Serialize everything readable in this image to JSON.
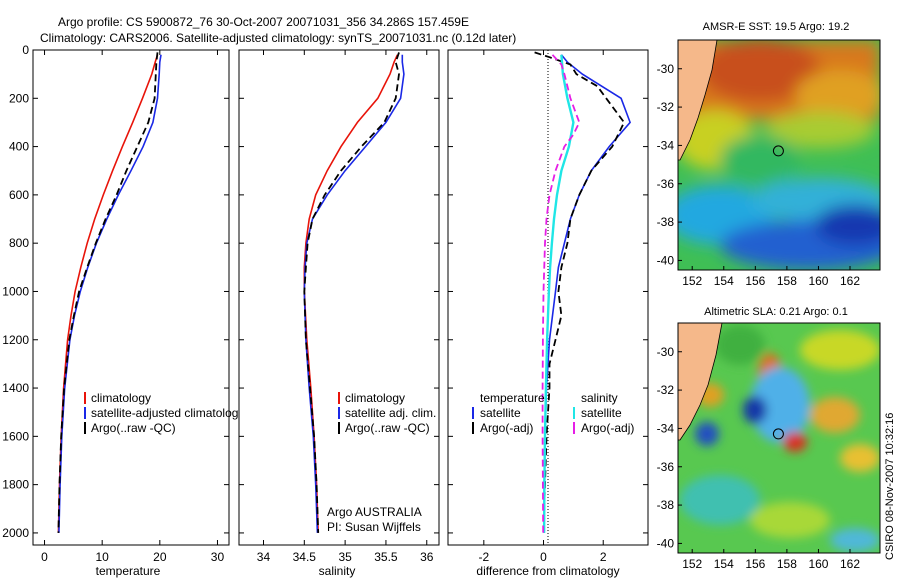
{
  "title_line1": "Argo profile: CS 5900872_76 30-Oct-2007 20071031_356 34.286S 157.459E",
  "title_line2": "Climatology: CARS2006. Satellite-adjusted climatology: synTS_20071031.nc (0.12d later)",
  "footer_credit": "CSIRO 08-Nov-2007 10:32:16",
  "colors": {
    "climatology": "#e8140a",
    "satellite": "#1a28e6",
    "argo": "#000000",
    "sal_satellite": "#1fe6e6",
    "sal_argo": "#e61ee6",
    "land": "#f5b88a"
  },
  "chart_data": [
    {
      "type": "line",
      "name": "temperature-profile",
      "xlabel": "temperature",
      "ylabel": "",
      "xlim": [
        -2,
        32
      ],
      "ylim": [
        2050,
        0
      ],
      "xticks": [
        "0",
        "10",
        "20",
        "30"
      ],
      "xtick_values": [
        0,
        10,
        20,
        30
      ],
      "yticks": [
        "0",
        "200",
        "400",
        "600",
        "800",
        "1000",
        "1200",
        "1400",
        "1600",
        "1800",
        "2000"
      ],
      "ytick_values": [
        0,
        200,
        400,
        600,
        800,
        1000,
        1200,
        1400,
        1600,
        1800,
        2000
      ],
      "legend": [
        "climatology",
        "satellite-adjusted climatology",
        "Argo(..raw -QC)"
      ],
      "series": [
        {
          "name": "climatology",
          "style": "solid",
          "color": "#e8140a",
          "depth": [
            20,
            50,
            100,
            200,
            300,
            400,
            500,
            600,
            700,
            800,
            900,
            1000,
            1100,
            1200,
            1400,
            1600,
            1800,
            2000
          ],
          "values": [
            19.6,
            19.2,
            18.6,
            17.0,
            15.3,
            13.5,
            11.8,
            10.2,
            8.7,
            7.4,
            6.3,
            5.3,
            4.6,
            4.0,
            3.3,
            2.9,
            2.6,
            2.4
          ]
        },
        {
          "name": "satellite-adjusted climatology",
          "style": "solid",
          "color": "#1a28e6",
          "depth": [
            20,
            50,
            100,
            200,
            300,
            400,
            500,
            600,
            700,
            800,
            900,
            1000,
            1100,
            1200,
            1400,
            1600,
            1800,
            2000
          ],
          "values": [
            20.2,
            20.0,
            19.9,
            19.6,
            18.8,
            17.1,
            15.0,
            12.8,
            10.8,
            9.0,
            7.5,
            6.2,
            5.2,
            4.4,
            3.5,
            3.0,
            2.7,
            2.5
          ]
        },
        {
          "name": "Argo(..raw -QC)",
          "style": "dashed",
          "color": "#000000",
          "depth": [
            10,
            50,
            100,
            200,
            300,
            400,
            500,
            600,
            700,
            800,
            900,
            1000,
            1100,
            1200,
            1400,
            1600,
            1800,
            2000
          ],
          "values": [
            19.6,
            19.4,
            19.3,
            19.1,
            18.0,
            16.1,
            14.2,
            12.5,
            10.6,
            8.9,
            7.4,
            6.0,
            5.1,
            4.3,
            3.4,
            2.9,
            2.6,
            2.4
          ]
        }
      ]
    },
    {
      "type": "line",
      "name": "salinity-profile",
      "xlabel": "salinity",
      "xlim": [
        33.7,
        36.15
      ],
      "ylim": [
        2050,
        0
      ],
      "xticks": [
        "34",
        "34.5",
        "35",
        "35.5",
        "36"
      ],
      "xtick_values": [
        34,
        34.5,
        35,
        35.5,
        36
      ],
      "legend": [
        "climatology",
        "satellite adj. clim.",
        "Argo(..raw -QC)"
      ],
      "annotation": [
        "Argo AUSTRALIA",
        "PI: Susan Wijffels"
      ],
      "series": [
        {
          "name": "climatology",
          "style": "solid",
          "color": "#e8140a",
          "depth": [
            20,
            50,
            100,
            200,
            300,
            400,
            500,
            600,
            700,
            800,
            900,
            1000,
            1200,
            1400,
            1600,
            1800,
            2000
          ],
          "values": [
            35.64,
            35.6,
            35.55,
            35.4,
            35.15,
            34.95,
            34.78,
            34.64,
            34.56,
            34.52,
            34.5,
            34.5,
            34.53,
            34.58,
            34.62,
            34.65,
            34.67
          ]
        },
        {
          "name": "satellite adj. clim.",
          "style": "solid",
          "color": "#1a28e6",
          "depth": [
            20,
            50,
            100,
            200,
            300,
            400,
            500,
            600,
            700,
            800,
            900,
            1000,
            1200,
            1400,
            1600,
            1800,
            2000
          ],
          "values": [
            35.7,
            35.7,
            35.72,
            35.68,
            35.5,
            35.25,
            35.0,
            34.78,
            34.6,
            34.53,
            34.51,
            34.5,
            34.52,
            34.56,
            34.61,
            34.64,
            34.66
          ]
        },
        {
          "name": "Argo(..raw -QC)",
          "style": "dashed",
          "color": "#000000",
          "depth": [
            10,
            50,
            100,
            200,
            300,
            400,
            500,
            600,
            700,
            800,
            900,
            1000,
            1200,
            1400,
            1600,
            1800,
            2000
          ],
          "values": [
            35.66,
            35.62,
            35.66,
            35.62,
            35.48,
            35.2,
            34.95,
            34.75,
            34.6,
            34.54,
            34.52,
            34.5,
            34.52,
            34.57,
            34.62,
            34.65,
            34.67
          ]
        }
      ]
    },
    {
      "type": "line",
      "name": "difference-profile",
      "xlabel": "difference from climatology",
      "xlim": [
        -3.2,
        3.5
      ],
      "ylim": [
        2050,
        0
      ],
      "xticks": [
        "-2",
        "0",
        "2"
      ],
      "xtick_values": [
        -2,
        0,
        2
      ],
      "legend": [
        "temperature",
        "satellite",
        "Argo(-adj)",
        "salinity",
        "satellite",
        "Argo(-adj)"
      ],
      "series": [
        {
          "name": "temperature satellite",
          "style": "solid",
          "color": "#1a28e6",
          "depth": [
            20,
            50,
            100,
            200,
            300,
            400,
            500,
            600,
            700,
            800,
            900,
            1000,
            1100,
            1200,
            1400,
            1600,
            1800,
            2000
          ],
          "values": [
            0.6,
            0.8,
            1.3,
            2.6,
            2.9,
            2.2,
            1.6,
            1.2,
            0.9,
            0.7,
            0.5,
            0.4,
            0.3,
            0.2,
            0.1,
            0.05,
            0.02,
            0.02
          ]
        },
        {
          "name": "temperature Argo(-adj)",
          "style": "dashed",
          "color": "#000000",
          "depth": [
            10,
            30,
            60,
            100,
            150,
            200,
            300,
            400,
            500,
            600,
            700,
            800,
            900,
            1000,
            1100,
            1200,
            1300,
            1400,
            1600,
            1800,
            2000
          ],
          "values": [
            -0.3,
            0.2,
            0.9,
            1.1,
            1.8,
            2.1,
            2.7,
            2.3,
            1.6,
            1.2,
            0.9,
            0.8,
            0.6,
            0.5,
            0.6,
            0.4,
            0.2,
            0.2,
            0.1,
            0.05,
            0.0
          ]
        },
        {
          "name": "salinity satellite",
          "style": "solid",
          "color": "#1fe6e6",
          "depth": [
            20,
            100,
            200,
            300,
            400,
            500,
            600,
            700,
            800,
            900,
            1000,
            1200,
            1400,
            1600,
            1800,
            2000
          ],
          "values": [
            0.6,
            0.65,
            0.8,
            1.0,
            0.85,
            0.6,
            0.45,
            0.35,
            0.28,
            0.22,
            0.18,
            0.12,
            0.08,
            0.05,
            0.03,
            0.02
          ]
        },
        {
          "name": "salinity Argo(-adj)",
          "style": "dashed",
          "color": "#e61ee6",
          "depth": [
            20,
            60,
            100,
            200,
            300,
            350,
            400,
            500,
            600,
            700,
            800,
            1000,
            1200,
            1400,
            1600,
            1800,
            2000
          ],
          "values": [
            0.3,
            0.6,
            0.7,
            0.9,
            1.2,
            1.0,
            0.7,
            0.4,
            0.2,
            0.1,
            0.05,
            0.0,
            -0.02,
            -0.03,
            -0.03,
            -0.02,
            -0.01
          ]
        }
      ]
    },
    {
      "type": "heatmap",
      "name": "amsre-sst-map",
      "title": "AMSR-E SST: 19.5 Argo: 19.2",
      "xticks": [
        "152",
        "154",
        "156",
        "158",
        "160",
        "162"
      ],
      "xtick_values": [
        152,
        154,
        156,
        158,
        160,
        162
      ],
      "yticks": [
        "-30",
        "-32",
        "-34",
        "-36",
        "-38",
        "-40"
      ],
      "ytick_values": [
        -30,
        -32,
        -34,
        -36,
        -38,
        -40
      ],
      "xlim": [
        151.1,
        163.9
      ],
      "ylim": [
        -40.5,
        -28.5
      ],
      "marker": [
        157.459,
        -34.286
      ]
    },
    {
      "type": "heatmap",
      "name": "altimetric-sla-map",
      "title": "Altimetric SLA: 0.21 Argo: 0.1",
      "xticks": [
        "152",
        "154",
        "156",
        "158",
        "160",
        "162"
      ],
      "xtick_values": [
        152,
        154,
        156,
        158,
        160,
        162
      ],
      "yticks": [
        "-30",
        "-32",
        "-34",
        "-36",
        "-38",
        "-40"
      ],
      "ytick_values": [
        -30,
        -32,
        -34,
        -36,
        -38,
        -40
      ],
      "xlim": [
        151.1,
        163.9
      ],
      "ylim": [
        -40.5,
        -28.5
      ],
      "marker": [
        157.459,
        -34.286
      ]
    }
  ]
}
